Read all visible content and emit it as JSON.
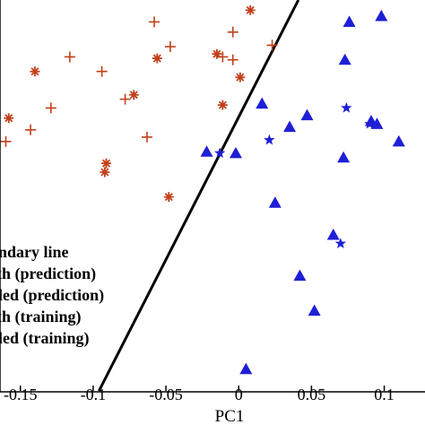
{
  "chart_data": {
    "type": "scatter",
    "xlabel": "PC1",
    "ylabel": "",
    "title": "",
    "xlim": [
      -0.164,
      0.128
    ],
    "ylim": [
      -0.133,
      0.135
    ],
    "x_ticks": [
      "-0.15",
      "-0.1",
      "-0.05",
      "0",
      "0.05",
      "0.1"
    ],
    "x_tick_values": [
      -0.15,
      -0.1,
      -0.05,
      0,
      0.05,
      0.1
    ],
    "grid": false,
    "legend_position": "bottom-left",
    "boundary_line": {
      "label": "ndary line",
      "points": [
        [
          -0.096,
          -0.133
        ],
        [
          0.041,
          0.135
        ]
      ],
      "color": "#000000"
    },
    "series": [
      {
        "name": "th (prediction)",
        "marker": "triangle",
        "color": "#1f1fd6",
        "points": [
          [
            0.076,
            0.12
          ],
          [
            0.098,
            0.124
          ],
          [
            0.073,
            0.094
          ],
          [
            0.016,
            0.064
          ],
          [
            0.047,
            0.056
          ],
          [
            0.035,
            0.048
          ],
          [
            0.091,
            0.052
          ],
          [
            0.095,
            0.05
          ],
          [
            0.11,
            0.038
          ],
          [
            -0.022,
            0.031
          ],
          [
            -0.002,
            0.03
          ],
          [
            0.072,
            0.027
          ],
          [
            0.025,
            -0.004
          ],
          [
            0.065,
            -0.026
          ],
          [
            0.042,
            -0.054
          ],
          [
            0.052,
            -0.078
          ],
          [
            0.005,
            -0.118
          ]
        ]
      },
      {
        "name": "led (prediction)",
        "marker": "star",
        "color": "#1f1fd6",
        "points": [
          [
            0.074,
            0.061
          ],
          [
            0.09,
            0.05
          ],
          [
            0.021,
            0.039
          ],
          [
            -0.013,
            0.03
          ],
          [
            0.07,
            -0.032
          ]
        ]
      },
      {
        "name": "th (training)",
        "marker": "plus",
        "color": "#c0401a",
        "points": [
          [
            -0.058,
            0.12
          ],
          [
            -0.004,
            0.113
          ],
          [
            -0.047,
            0.103
          ],
          [
            0.023,
            0.104
          ],
          [
            -0.011,
            0.096
          ],
          [
            -0.004,
            0.094
          ],
          [
            -0.116,
            0.096
          ],
          [
            -0.094,
            0.086
          ],
          [
            -0.078,
            0.067
          ],
          [
            -0.129,
            0.061
          ],
          [
            -0.143,
            0.046
          ],
          [
            -0.063,
            0.041
          ],
          [
            -0.16,
            0.038
          ]
        ]
      },
      {
        "name": "led (training)",
        "marker": "asterisk",
        "color": "#c0401a",
        "points": [
          [
            0.008,
            0.128
          ],
          [
            -0.015,
            0.098
          ],
          [
            -0.056,
            0.095
          ],
          [
            -0.072,
            0.07
          ],
          [
            0.001,
            0.082
          ],
          [
            -0.14,
            0.086
          ],
          [
            -0.158,
            0.054
          ],
          [
            -0.011,
            0.063
          ],
          [
            -0.091,
            0.023
          ],
          [
            -0.092,
            0.017
          ],
          [
            -0.048,
            0.0
          ]
        ]
      }
    ]
  },
  "legend": {
    "items": [
      {
        "text": "ndary line"
      },
      {
        "text": "th (prediction)"
      },
      {
        "text": "led (prediction)"
      },
      {
        "text": "th (training)"
      },
      {
        "text": "led (training)"
      }
    ]
  }
}
